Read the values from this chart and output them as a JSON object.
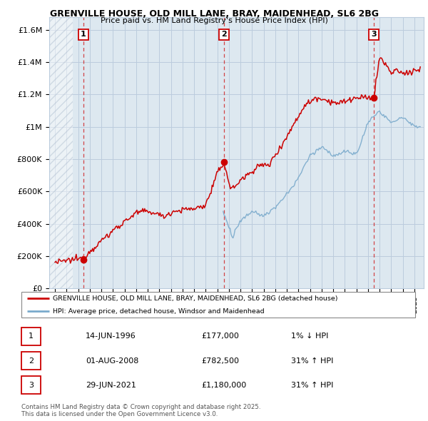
{
  "title1": "GRENVILLE HOUSE, OLD MILL LANE, BRAY, MAIDENHEAD, SL6 2BG",
  "title2": "Price paid vs. HM Land Registry's House Price Index (HPI)",
  "ylabel_ticks": [
    "£0",
    "£200K",
    "£400K",
    "£600K",
    "£800K",
    "£1M",
    "£1.2M",
    "£1.4M",
    "£1.6M"
  ],
  "ytick_vals": [
    0,
    200000,
    400000,
    600000,
    800000,
    1000000,
    1200000,
    1400000,
    1600000
  ],
  "ylim": [
    0,
    1680000
  ],
  "xlim_start": 1993.5,
  "xlim_end": 2025.8,
  "sales": [
    {
      "year": 1996.45,
      "price": 177000,
      "label": "1"
    },
    {
      "year": 2008.58,
      "price": 782500,
      "label": "2"
    },
    {
      "year": 2021.49,
      "price": 1180000,
      "label": "3"
    }
  ],
  "legend_line1": "GRENVILLE HOUSE, OLD MILL LANE, BRAY, MAIDENHEAD, SL6 2BG (detached house)",
  "legend_line2": "HPI: Average price, detached house, Windsor and Maidenhead",
  "table": [
    {
      "num": "1",
      "date": "14-JUN-1996",
      "price": "£177,000",
      "hpi": "1% ↓ HPI"
    },
    {
      "num": "2",
      "date": "01-AUG-2008",
      "price": "£782,500",
      "hpi": "31% ↑ HPI"
    },
    {
      "num": "3",
      "date": "29-JUN-2021",
      "price": "£1,180,000",
      "hpi": "31% ↑ HPI"
    }
  ],
  "footer": "Contains HM Land Registry data © Crown copyright and database right 2025.\nThis data is licensed under the Open Government Licence v3.0.",
  "bg_color": "#dde8f0",
  "hatch_region_end": 1995.5,
  "grid_color": "#bbccdd",
  "red_color": "#cc0000",
  "blue_color": "#7aaacc"
}
